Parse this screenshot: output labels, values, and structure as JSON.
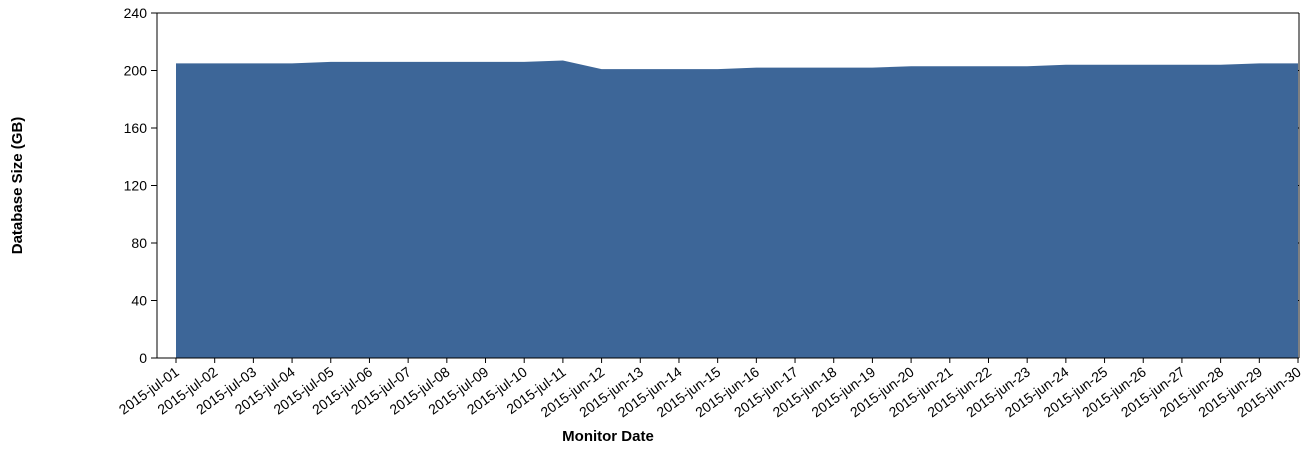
{
  "chart_data": {
    "type": "area",
    "xlabel": "Monitor Date",
    "ylabel": "Database Size (GB)",
    "ylim": [
      0,
      240
    ],
    "yticks": [
      0,
      40,
      80,
      120,
      160,
      200,
      240
    ],
    "grid": false,
    "colors": {
      "fill": "#3d6698",
      "axis": "#000000"
    },
    "categories": [
      "2015-jul-01",
      "2015-jul-02",
      "2015-jul-03",
      "2015-jul-04",
      "2015-jul-05",
      "2015-jul-06",
      "2015-jul-07",
      "2015-jul-08",
      "2015-jul-09",
      "2015-jul-10",
      "2015-jul-11",
      "2015-jun-12",
      "2015-jun-13",
      "2015-jun-14",
      "2015-jun-15",
      "2015-jun-16",
      "2015-jun-17",
      "2015-jun-18",
      "2015-jun-19",
      "2015-jun-20",
      "2015-jun-21",
      "2015-jun-22",
      "2015-jun-23",
      "2015-jun-24",
      "2015-jun-25",
      "2015-jun-26",
      "2015-jun-27",
      "2015-jun-28",
      "2015-jun-29",
      "2015-jun-30"
    ],
    "series": [
      {
        "values": [
          205,
          205,
          205,
          205,
          206,
          206,
          206,
          206,
          206,
          206,
          207,
          201,
          201,
          201,
          201,
          202,
          202,
          202,
          202,
          203,
          203,
          203,
          203,
          204,
          204,
          204,
          204,
          204,
          205,
          205
        ]
      }
    ]
  }
}
